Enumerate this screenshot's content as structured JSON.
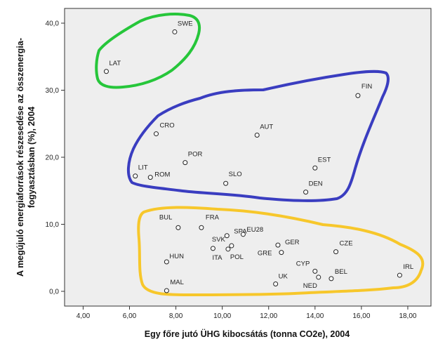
{
  "chart_data": {
    "type": "scatter",
    "xlabel": "Egy főre jutó ÜHG kibocsátás (tonna CO2e), 2004",
    "ylabel_lines": [
      "A megújuló energiaforrások részesedése az összenergia-",
      "fogyasztásban (%), 2004"
    ],
    "xlim": [
      3.2,
      19.0
    ],
    "ylim": [
      -2.2,
      42.2
    ],
    "x_ticks": [
      4,
      6,
      8,
      10,
      12,
      14,
      16,
      18
    ],
    "x_tick_labels": [
      "4,00",
      "6,00",
      "8,00",
      "10,00",
      "12,00",
      "14,00",
      "16,00",
      "18,00"
    ],
    "y_ticks": [
      0,
      10,
      20,
      30,
      40
    ],
    "y_tick_labels": [
      "0,0",
      "10,0",
      "20,0",
      "30,0",
      "40,0"
    ],
    "grid": false,
    "points": [
      {
        "label": "SWE",
        "x": 7.95,
        "y": 38.7
      },
      {
        "label": "LAT",
        "x": 5.0,
        "y": 32.8
      },
      {
        "label": "FIN",
        "x": 15.85,
        "y": 29.2
      },
      {
        "label": "CRO",
        "x": 7.15,
        "y": 23.5
      },
      {
        "label": "AUT",
        "x": 11.5,
        "y": 23.3
      },
      {
        "label": "POR",
        "x": 8.4,
        "y": 19.2
      },
      {
        "label": "EST",
        "x": 14.0,
        "y": 18.4
      },
      {
        "label": "LIT",
        "x": 6.25,
        "y": 17.2
      },
      {
        "label": "ROM",
        "x": 6.9,
        "y": 17.0
      },
      {
        "label": "SLO",
        "x": 10.15,
        "y": 16.1
      },
      {
        "label": "DEN",
        "x": 13.6,
        "y": 14.8
      },
      {
        "label": "BUL",
        "x": 8.1,
        "y": 9.5
      },
      {
        "label": "FRA",
        "x": 9.1,
        "y": 9.5
      },
      {
        "label": "SPA",
        "x": 10.2,
        "y": 8.3
      },
      {
        "label": "EU28",
        "x": 10.9,
        "y": 8.5
      },
      {
        "label": "SVK",
        "x": 10.4,
        "y": 6.8
      },
      {
        "label": "ITA",
        "x": 9.6,
        "y": 6.4
      },
      {
        "label": "POL",
        "x": 10.25,
        "y": 6.3
      },
      {
        "label": "GER",
        "x": 12.4,
        "y": 6.9
      },
      {
        "label": "GRE",
        "x": 12.55,
        "y": 5.8
      },
      {
        "label": "CZE",
        "x": 14.9,
        "y": 5.9
      },
      {
        "label": "HUN",
        "x": 7.6,
        "y": 4.4
      },
      {
        "label": "CYP",
        "x": 14.0,
        "y": 3.0
      },
      {
        "label": "BEL",
        "x": 14.7,
        "y": 1.9
      },
      {
        "label": "NED",
        "x": 14.15,
        "y": 2.1
      },
      {
        "label": "IRL",
        "x": 17.65,
        "y": 2.4
      },
      {
        "label": "UK",
        "x": 12.3,
        "y": 1.1
      },
      {
        "label": "MAL",
        "x": 7.6,
        "y": 0.1
      }
    ]
  },
  "colors": {
    "plot_background": "#eeeeee",
    "green_group": "#26c63a",
    "blue_group": "#3a3dc0",
    "yellow_group": "#f7c72b"
  }
}
